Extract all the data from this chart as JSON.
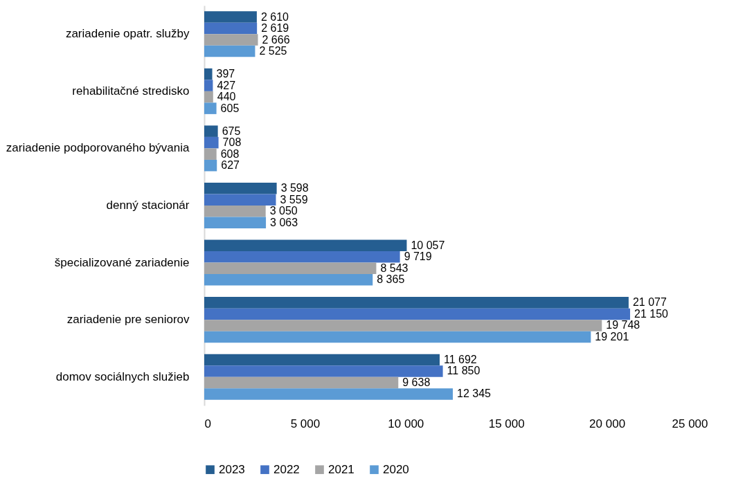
{
  "chart_data": {
    "type": "bar",
    "orientation": "horizontal",
    "categories": [
      "zariadenie opatr. služby",
      "rehabilitačné stredisko",
      "zariadenie podporovaného bývania",
      "denný stacionár",
      "špecializované zariadenie",
      "zariadenie pre seniorov",
      "domov sociálnych služieb"
    ],
    "series": [
      {
        "name": "2023",
        "color": "#255e91",
        "values": [
          2610,
          397,
          675,
          3598,
          10057,
          21077,
          11692
        ],
        "value_labels": [
          "2 610",
          "397",
          "675",
          "3 598",
          "10 057",
          "21 077",
          "11 692"
        ]
      },
      {
        "name": "2022",
        "color": "#4472c4",
        "values": [
          2619,
          427,
          708,
          3559,
          9719,
          21150,
          11850
        ],
        "value_labels": [
          "2 619",
          "427",
          "708",
          "3 559",
          "9 719",
          "21 150",
          "11 850"
        ]
      },
      {
        "name": "2021",
        "color": "#a5a5a5",
        "values": [
          2666,
          440,
          608,
          3050,
          8543,
          19748,
          9638
        ],
        "value_labels": [
          "2 666",
          "440",
          "608",
          "3 050",
          "8 543",
          "19 748",
          "9 638"
        ]
      },
      {
        "name": "2020",
        "color": "#5b9bd5",
        "values": [
          2525,
          605,
          627,
          3063,
          8365,
          19201,
          12345
        ],
        "value_labels": [
          "2 525",
          "605",
          "627",
          "3 063",
          "8 365",
          "19 201",
          "12 345"
        ]
      }
    ],
    "xlim": [
      0,
      25000
    ],
    "xticks": [
      0,
      {
        "value": 5000,
        "label": "5 000"
      },
      {
        "value": 10000,
        "label": "10 000"
      },
      {
        "value": 15000,
        "label": "15 000"
      },
      {
        "value": 20000,
        "label": "20 000"
      },
      {
        "value": 25000,
        "label": "25 000"
      }
    ],
    "grid": false,
    "legend": "bottom"
  }
}
